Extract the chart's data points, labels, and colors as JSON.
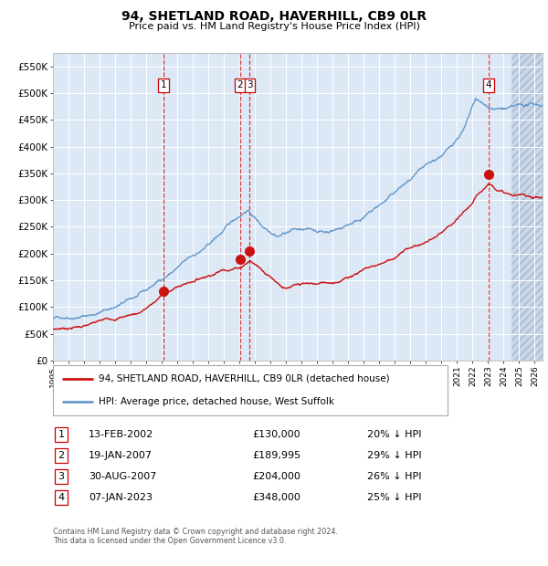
{
  "title": "94, SHETLAND ROAD, HAVERHILL, CB9 0LR",
  "subtitle": "Price paid vs. HM Land Registry's House Price Index (HPI)",
  "legend_line1": "94, SHETLAND ROAD, HAVERHILL, CB9 0LR (detached house)",
  "legend_line2": "HPI: Average price, detached house, West Suffolk",
  "footer": "Contains HM Land Registry data © Crown copyright and database right 2024.\nThis data is licensed under the Open Government Licence v3.0.",
  "table": [
    {
      "num": 1,
      "date": "13-FEB-2002",
      "price": "£130,000",
      "pct": "20% ↓ HPI"
    },
    {
      "num": 2,
      "date": "19-JAN-2007",
      "price": "£189,995",
      "pct": "29% ↓ HPI"
    },
    {
      "num": 3,
      "date": "30-AUG-2007",
      "price": "£204,000",
      "pct": "26% ↓ HPI"
    },
    {
      "num": 4,
      "date": "07-JAN-2023",
      "price": "£348,000",
      "pct": "25% ↓ HPI"
    }
  ],
  "sale_dates_num": [
    2002.11,
    2007.05,
    2007.66,
    2023.02
  ],
  "sale_prices": [
    130000,
    189995,
    204000,
    348000
  ],
  "sale_marker_nums": [
    1,
    2,
    3,
    4
  ],
  "hpi_color": "#6699cc",
  "price_color": "#cc1111",
  "background_color": "#dce8f5",
  "ylim": [
    0,
    575000
  ],
  "xlim_start": 1995.0,
  "xlim_end": 2026.5,
  "hatch_start": 2024.5,
  "ytick_vals": [
    0,
    50000,
    100000,
    150000,
    200000,
    250000,
    300000,
    350000,
    400000,
    450000,
    500000,
    550000
  ],
  "ytick_labels": [
    "£0",
    "£50K",
    "£100K",
    "£150K",
    "£200K",
    "£250K",
    "£300K",
    "£350K",
    "£400K",
    "£450K",
    "£500K",
    "£550K"
  ],
  "xtick_years": [
    1995,
    1996,
    1997,
    1998,
    1999,
    2000,
    2001,
    2002,
    2003,
    2004,
    2005,
    2006,
    2007,
    2008,
    2009,
    2010,
    2011,
    2012,
    2013,
    2014,
    2015,
    2016,
    2017,
    2018,
    2019,
    2020,
    2021,
    2022,
    2023,
    2024,
    2025,
    2026
  ]
}
